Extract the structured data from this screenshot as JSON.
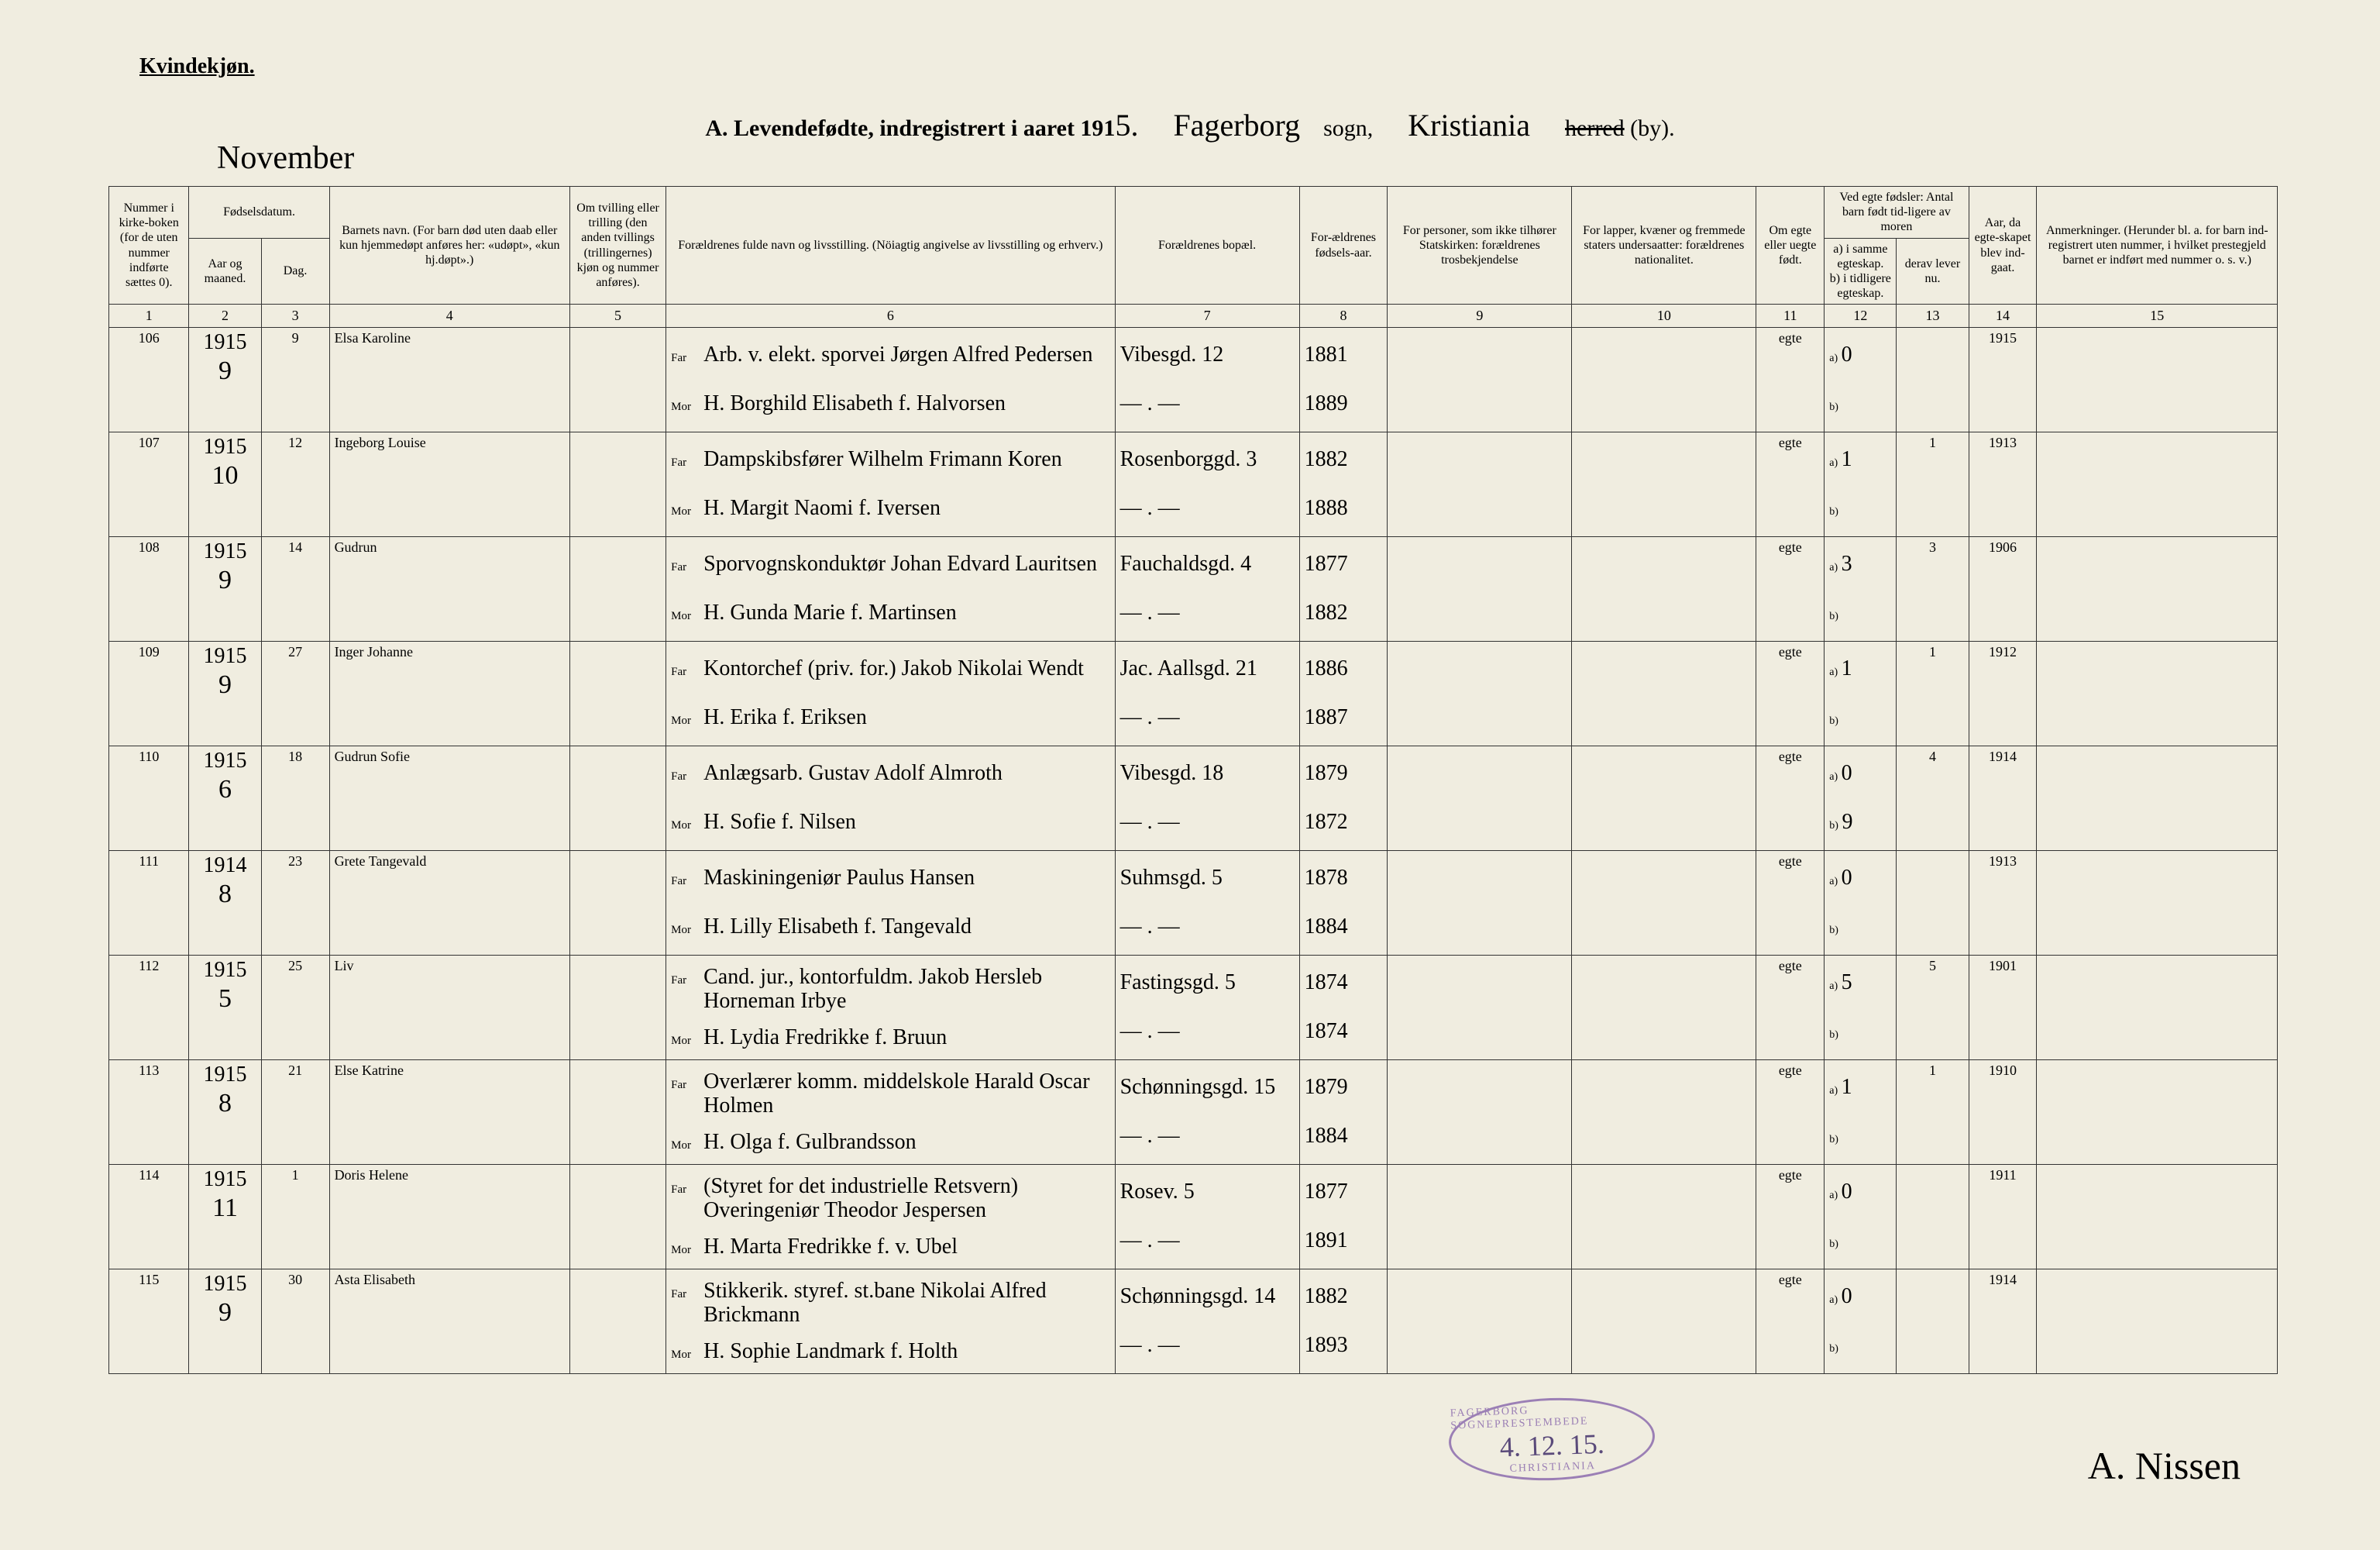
{
  "header": {
    "corner": "Kvindekjøn.",
    "title_prefix": "A. Levendefødte, indregistrert i aaret 191",
    "year_suffix": "5.",
    "parish_hand": "Fagerborg",
    "parish_label": "sogn,",
    "district_hand": "Kristiania",
    "struck": "herred",
    "by": "(by).",
    "month": "November"
  },
  "columns": {
    "c1": "Nummer i kirke-boken (for de uten nummer indførte sættes 0).",
    "c2a": "Fødselsdatum.",
    "c2_aar": "Aar og maaned.",
    "c2_dag": "Dag.",
    "c4": "Barnets navn.\n(For barn død uten daab eller kun hjemmedøpt anføres her: «udøpt», «kun hj.døpt».)",
    "c5": "Om tvilling eller trilling (den anden tvillings (trillingernes) kjøn og nummer anføres).",
    "c6": "Forældrenes fulde navn og livsstilling.\n(Nöiagtig angivelse av livsstilling og erhverv.)",
    "c7": "Forældrenes bopæl.",
    "c8": "For-ældrenes fødsels-aar.",
    "c9": "For personer, som ikke tilhører Statskirken: forældrenes trosbekjendelse",
    "c10": "For lapper, kvæner og fremmede staters undersaatter: forældrenes nationalitet.",
    "c11": "Om egte eller uegte født.",
    "c12": "Ved egte fødsler: Antal barn født tid-ligere av moren",
    "c12a": "a) i samme egteskap.",
    "c12b": "b) i tidligere egteskap.",
    "c13": "derav lever nu.",
    "c14": "Aar, da egte-skapet blev ind-gaat.",
    "c15": "Anmerkninger.\n(Herunder bl. a. for barn ind-registrert uten nummer, i hvilket prestegjeld barnet er indført med nummer o. s. v.)"
  },
  "colnums": [
    "1",
    "2",
    "3",
    "4",
    "5",
    "6",
    "7",
    "8",
    "9",
    "10",
    "11",
    "12",
    "13",
    "14",
    "15"
  ],
  "rows": [
    {
      "num": "106",
      "year": "1915",
      "month": "9",
      "day": "9",
      "name": "Elsa Karoline",
      "far": "Arb. v. elekt. sporvei Jørgen Alfred Pedersen",
      "mor": "H. Borghild Elisabeth f. Halvorsen",
      "addr_f": "Vibesgd. 12",
      "addr_m": "— . —",
      "fy": "1881",
      "my": "1889",
      "legit": "egte",
      "a": "0",
      "b": "",
      "lev": "",
      "married": "1915",
      "note": ""
    },
    {
      "num": "107",
      "year": "1915",
      "month": "10",
      "day": "12",
      "name": "Ingeborg Louise",
      "far": "Dampskibsfører Wilhelm Frimann Koren",
      "mor": "H. Margit Naomi f. Iversen",
      "addr_f": "Rosenborggd. 3",
      "addr_m": "— . —",
      "fy": "1882",
      "my": "1888",
      "legit": "egte",
      "a": "1",
      "b": "",
      "lev": "1",
      "married": "1913",
      "note": ""
    },
    {
      "num": "108",
      "year": "1915",
      "month": "9",
      "day": "14",
      "name": "Gudrun",
      "far": "Sporvognskonduktør Johan Edvard Lauritsen",
      "mor": "H. Gunda Marie f. Martinsen",
      "addr_f": "Fauchaldsgd. 4",
      "addr_m": "— . —",
      "fy": "1877",
      "my": "1882",
      "legit": "egte",
      "a": "3",
      "b": "",
      "lev": "3",
      "married": "1906",
      "note": ""
    },
    {
      "num": "109",
      "year": "1915",
      "month": "9",
      "day": "27",
      "name": "Inger Johanne",
      "far": "Kontorchef (priv. for.) Jakob Nikolai Wendt",
      "mor": "H. Erika f. Eriksen",
      "addr_f": "Jac. Aallsgd. 21",
      "addr_m": "— . —",
      "fy": "1886",
      "my": "1887",
      "legit": "egte",
      "a": "1",
      "b": "",
      "lev": "1",
      "married": "1912",
      "note": ""
    },
    {
      "num": "110",
      "year": "1915",
      "month": "6",
      "day": "18",
      "name": "Gudrun Sofie",
      "far": "Anlægsarb. Gustav Adolf Almroth",
      "mor": "H. Sofie f. Nilsen",
      "addr_f": "Vibesgd. 18",
      "addr_m": "— . —",
      "fy": "1879",
      "my": "1872",
      "legit": "egte",
      "a": "0",
      "b": "9",
      "lev": "4",
      "married": "1914",
      "note": ""
    },
    {
      "num": "111",
      "year": "1914",
      "month": "8",
      "day": "23",
      "name": "Grete Tangevald",
      "far": "Maskiningeniør Paulus Hansen",
      "mor": "H. Lilly Elisabeth f. Tangevald",
      "addr_f": "Suhmsgd. 5",
      "addr_m": "— . —",
      "fy": "1878",
      "my": "1884",
      "legit": "egte",
      "a": "0",
      "b": "",
      "lev": "",
      "married": "1913",
      "note": ""
    },
    {
      "num": "112",
      "year": "1915",
      "month": "5",
      "day": "25",
      "name": "Liv",
      "far": "Cand. jur., kontorfuldm. Jakob Hersleb Horneman Irbye",
      "mor": "H. Lydia Fredrikke f. Bruun",
      "addr_f": "Fastingsgd. 5",
      "addr_m": "— . —",
      "fy": "1874",
      "my": "1874",
      "legit": "egte",
      "a": "5",
      "b": "",
      "lev": "5",
      "married": "1901",
      "note": ""
    },
    {
      "num": "113",
      "year": "1915",
      "month": "8",
      "day": "21",
      "name": "Else Katrine",
      "far": "Overlærer komm. middelskole Harald Oscar Holmen",
      "mor": "H. Olga f. Gulbrandsson",
      "addr_f": "Schønningsgd. 15",
      "addr_m": "— . —",
      "fy": "1879",
      "my": "1884",
      "legit": "egte",
      "a": "1",
      "b": "",
      "lev": "1",
      "married": "1910",
      "note": ""
    },
    {
      "num": "114",
      "year": "1915",
      "month": "11",
      "day": "1",
      "name": "Doris Helene",
      "far": "(Styret for det industrielle Retsvern) Overingeniør Theodor Jespersen",
      "mor": "H. Marta Fredrikke f. v. Ubel",
      "addr_f": "Rosev. 5",
      "addr_m": "— . —",
      "fy": "1877",
      "my": "1891",
      "legit": "egte",
      "a": "0",
      "b": "",
      "lev": "",
      "married": "1911",
      "note": ""
    },
    {
      "num": "115",
      "year": "1915",
      "month": "9",
      "day": "30",
      "name": "Asta Elisabeth",
      "far": "Stikkerik. styref. st.bane Nikolai Alfred Brickmann",
      "mor": "H. Sophie Landmark f. Holth",
      "addr_f": "Schønningsgd. 14",
      "addr_m": "— . —",
      "fy": "1882",
      "my": "1893",
      "legit": "egte",
      "a": "0",
      "b": "",
      "lev": "",
      "married": "1914",
      "note": ""
    }
  ],
  "stamp": {
    "arc_top": "FAGERBORG SOGNEPRESTEMBEDE",
    "date": "4. 12. 15.",
    "arc_bot": "CHRISTIANIA"
  },
  "signature": "A. Nissen",
  "widths": {
    "c1": 100,
    "c2": 90,
    "c3": 85,
    "c4": 300,
    "c5": 120,
    "c6": 560,
    "c7": 230,
    "c8": 110,
    "c9": 230,
    "c10": 230,
    "c11": 85,
    "c12": 90,
    "c13": 90,
    "c14": 85,
    "c15": 300
  },
  "colors": {
    "ink": "#2a2a2a",
    "paper": "#f0ede0",
    "stamp": "#9b7fb5",
    "line": "#333"
  }
}
